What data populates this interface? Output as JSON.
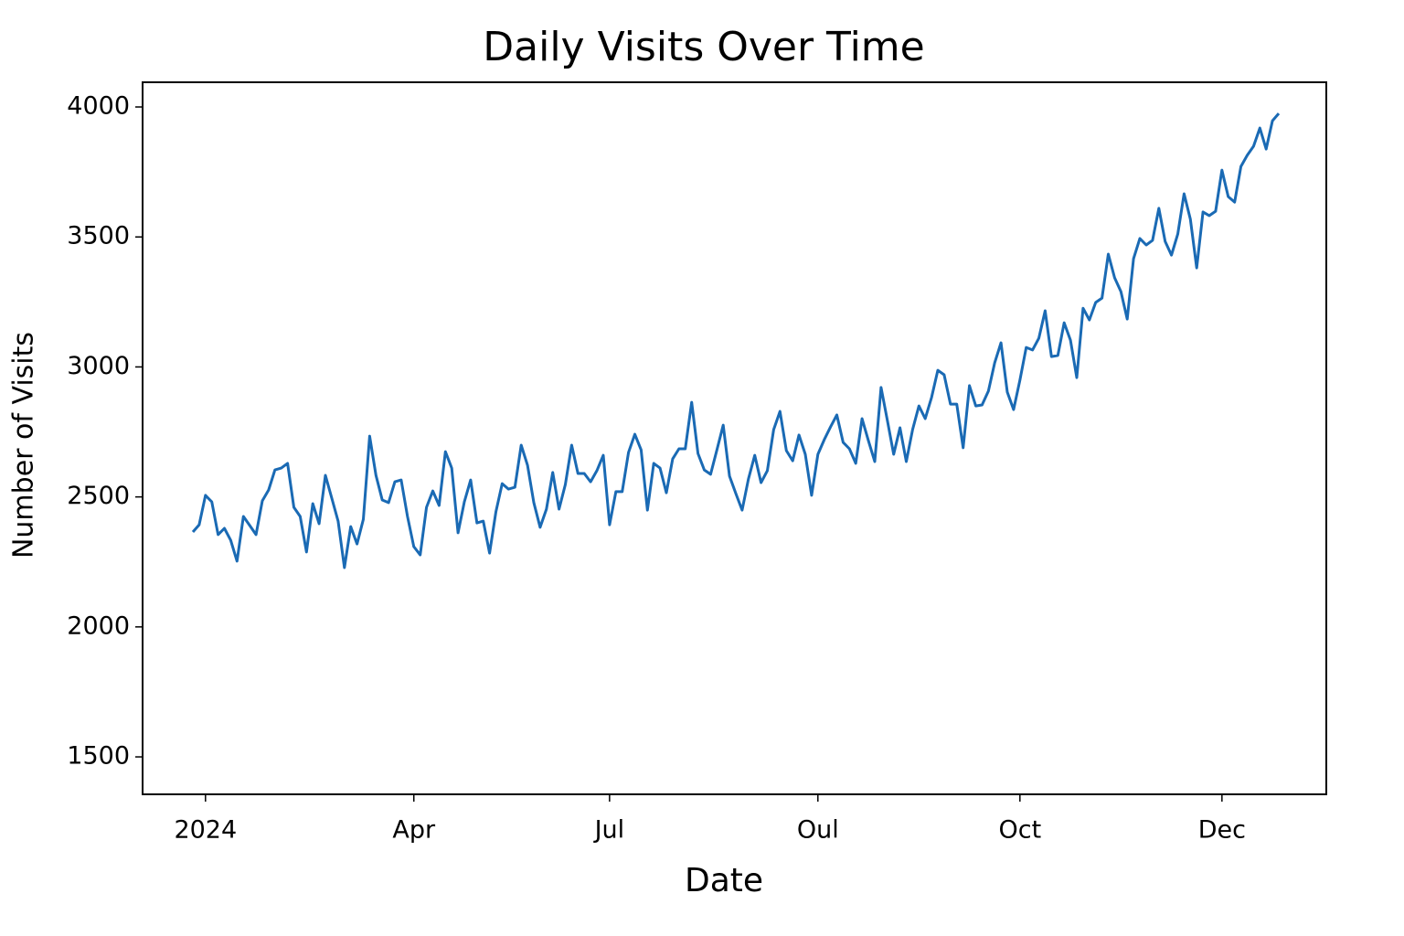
{
  "chart_data": {
    "type": "line",
    "title": "Daily Visits Over Time",
    "x_label": "Date",
    "y_label": "Number of Visits",
    "color": "#1a6ab4",
    "grid": false,
    "ylim": [
      1356,
      4095
    ],
    "yticks": [
      1500,
      2000,
      2500,
      3000,
      3500,
      4000
    ],
    "categories": [
      null,
      null,
      "2024",
      null,
      null,
      null,
      null,
      null,
      null,
      null,
      null,
      null,
      null,
      null,
      null,
      null,
      null,
      null,
      null,
      null,
      null,
      null,
      null,
      null,
      null,
      null,
      null,
      null,
      null,
      null,
      null,
      null,
      null,
      null,
      null,
      "Apr",
      null,
      null,
      null,
      null,
      null,
      null,
      null,
      null,
      null,
      null,
      null,
      null,
      null,
      null,
      null,
      null,
      null,
      null,
      null,
      null,
      null,
      null,
      null,
      null,
      null,
      null,
      null,
      null,
      null,
      null,
      "Jul",
      null,
      null,
      null,
      null,
      null,
      null,
      null,
      null,
      null,
      null,
      null,
      null,
      null,
      null,
      null,
      null,
      null,
      null,
      null,
      null,
      null,
      null,
      null,
      null,
      null,
      null,
      null,
      null,
      null,
      null,
      null,
      null,
      "Oul",
      null,
      null,
      null,
      null,
      null,
      null,
      null,
      null,
      null,
      null,
      null,
      null,
      null,
      null,
      null,
      null,
      null,
      null,
      null,
      null,
      null,
      null,
      null,
      null,
      null,
      null,
      null,
      null,
      null,
      null,
      null,
      "Oct",
      null,
      null,
      null,
      null,
      null,
      null,
      null,
      null,
      null,
      null,
      null,
      null,
      null,
      null,
      null,
      null,
      null,
      null,
      null,
      null,
      null,
      null,
      null,
      null,
      null,
      null,
      null,
      null,
      null,
      null,
      null,
      "Dec",
      null,
      null,
      null,
      null,
      null,
      null,
      null,
      null,
      null
    ],
    "values": [
      2365,
      2393,
      2506,
      2481,
      2355,
      2379,
      2333,
      2253,
      2425,
      2390,
      2355,
      2485,
      2527,
      2604,
      2611,
      2629,
      2460,
      2425,
      2288,
      2474,
      2397,
      2583,
      2495,
      2407,
      2228,
      2386,
      2319,
      2414,
      2734,
      2583,
      2488,
      2478,
      2558,
      2565,
      2425,
      2309,
      2277,
      2460,
      2523,
      2467,
      2674,
      2611,
      2362,
      2481,
      2565,
      2400,
      2407,
      2284,
      2442,
      2551,
      2530,
      2537,
      2699,
      2622,
      2478,
      2383,
      2453,
      2594,
      2453,
      2548,
      2699,
      2590,
      2590,
      2558,
      2601,
      2660,
      2393,
      2520,
      2520,
      2671,
      2741,
      2681,
      2449,
      2629,
      2611,
      2516,
      2646,
      2685,
      2685,
      2864,
      2667,
      2604,
      2587,
      2681,
      2776,
      2580,
      2513,
      2449,
      2569,
      2660,
      2555,
      2601,
      2759,
      2829,
      2678,
      2639,
      2738,
      2664,
      2506,
      2664,
      2720,
      2769,
      2815,
      2710,
      2685,
      2629,
      2801,
      2717,
      2636,
      2921,
      2794,
      2664,
      2766,
      2636,
      2759,
      2850,
      2801,
      2882,
      2987,
      2970,
      2857,
      2857,
      2689,
      2928,
      2850,
      2854,
      2907,
      3016,
      3093,
      2903,
      2836,
      2949,
      3075,
      3065,
      3110,
      3216,
      3040,
      3044,
      3170,
      3103,
      2959,
      3226,
      3181,
      3248,
      3265,
      3434,
      3343,
      3290,
      3184,
      3416,
      3494,
      3469,
      3487,
      3610,
      3483,
      3430,
      3511,
      3666,
      3568,
      3381,
      3596,
      3582,
      3599,
      3757,
      3655,
      3634,
      3771,
      3814,
      3849,
      3919,
      3838,
      3947,
      3975
    ]
  }
}
